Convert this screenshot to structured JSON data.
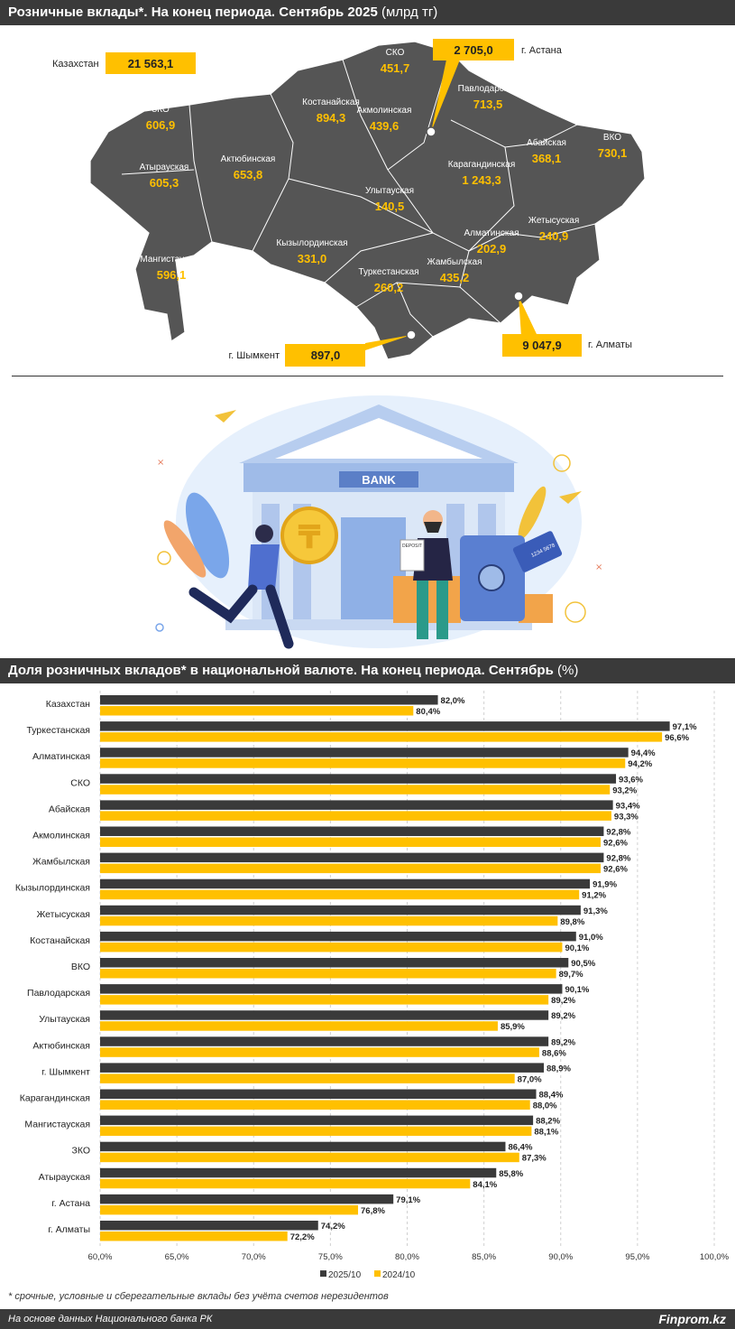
{
  "map_section": {
    "title": "Розничные вклады*. На конец периода. Сентябрь 2025",
    "unit": "(млрд тг)",
    "national_label": "Казахстан",
    "national_value": "21 563,1",
    "regions": [
      {
        "name": "СКО",
        "value": "451,7"
      },
      {
        "name": "Павлодарская",
        "value": "713,5"
      },
      {
        "name": "Костанайская",
        "value": "894,3"
      },
      {
        "name": "Акмолинская",
        "value": "439,6"
      },
      {
        "name": "ЗКО",
        "value": "606,9"
      },
      {
        "name": "Абайская",
        "value": "368,1"
      },
      {
        "name": "ВКО",
        "value": "730,1"
      },
      {
        "name": "Атырауская",
        "value": "605,3"
      },
      {
        "name": "Актюбинская",
        "value": "653,8"
      },
      {
        "name": "Карагандинская",
        "value": "1 243,3"
      },
      {
        "name": "Улытауская",
        "value": "140,5"
      },
      {
        "name": "Жетысуская",
        "value": "240,9"
      },
      {
        "name": "Алматинская",
        "value": "202,9"
      },
      {
        "name": "Мангистауская",
        "value": "596,1"
      },
      {
        "name": "Кызылординская",
        "value": "331,0"
      },
      {
        "name": "Жамбылская",
        "value": "435,2"
      },
      {
        "name": "Туркестанская",
        "value": "260,2"
      }
    ],
    "cities": [
      {
        "name": "г. Астана",
        "value": "2 705,0"
      },
      {
        "name": "г. Алматы",
        "value": "9 047,9"
      },
      {
        "name": "г. Шымкент",
        "value": "897,0"
      }
    ]
  },
  "illustration": {
    "sign_text": "BANK",
    "deposit_text": "DEPOSIT",
    "card_text": "1234 5678"
  },
  "chart_section": {
    "title": "Доля розничных вкладов* в национальной валюте. На конец периода. Сентябрь",
    "unit": "(%)"
  },
  "chart_data": {
    "type": "bar",
    "orientation": "horizontal",
    "categories": [
      "Казахстан",
      "Туркестанская",
      "Алматинская",
      "СКО",
      "Абайская",
      "Акмолинская",
      "Жамбылская",
      "Кызылординская",
      "Жетысуская",
      "Костанайская",
      "ВКО",
      "Павлодарская",
      "Улытауская",
      "Актюбинская",
      "г. Шымкент",
      "Карагандинская",
      "Мангистауская",
      "ЗКО",
      "Атырауская",
      "г. Астана",
      "г. Алматы"
    ],
    "series": [
      {
        "name": "2025/10",
        "color": "#3a3a3a",
        "values": [
          82.0,
          97.1,
          94.4,
          93.6,
          93.4,
          92.8,
          92.8,
          91.9,
          91.3,
          91.0,
          90.5,
          90.1,
          89.2,
          89.2,
          88.9,
          88.4,
          88.2,
          86.4,
          85.8,
          79.1,
          74.2
        ],
        "labels": [
          "82,0%",
          "97,1%",
          "94,4%",
          "93,6%",
          "93,4%",
          "92,8%",
          "92,8%",
          "91,9%",
          "91,3%",
          "91,0%",
          "90,5%",
          "90,1%",
          "89,2%",
          "89,2%",
          "88,9%",
          "88,4%",
          "88,2%",
          "86,4%",
          "85,8%",
          "79,1%",
          "74,2%"
        ]
      },
      {
        "name": "2024/10",
        "color": "#ffc000",
        "values": [
          80.4,
          96.6,
          94.2,
          93.2,
          93.3,
          92.6,
          92.6,
          91.2,
          89.8,
          90.1,
          89.7,
          89.2,
          85.9,
          88.6,
          87.0,
          88.0,
          88.1,
          87.3,
          84.1,
          76.8,
          72.2
        ],
        "labels": [
          "80,4%",
          "96,6%",
          "94,2%",
          "93,2%",
          "93,3%",
          "92,6%",
          "92,6%",
          "91,2%",
          "89,8%",
          "90,1%",
          "89,7%",
          "89,2%",
          "85,9%",
          "88,6%",
          "87,0%",
          "88,0%",
          "88,1%",
          "87,3%",
          "84,1%",
          "76,8%",
          "72,2%"
        ]
      }
    ],
    "xlim": [
      60,
      100
    ],
    "xticks": [
      60,
      65,
      70,
      75,
      80,
      85,
      90,
      95,
      100
    ],
    "xtick_labels": [
      "60,0%",
      "65,0%",
      "70,0%",
      "75,0%",
      "80,0%",
      "85,0%",
      "90,0%",
      "95,0%",
      "100,0%"
    ],
    "grid": true,
    "legend": "bottom-center"
  },
  "footnote": "* срочные, условные и сберегательные вклады без учёта счетов нерезидентов",
  "footer": {
    "source": "На основе данных Национального банка РК",
    "brand": "Finprom.kz"
  },
  "colors": {
    "header_bg": "#3a3a3a",
    "map_fill": "#555555",
    "value_yellow": "#ffc000",
    "box_yellow": "#ffc000"
  }
}
